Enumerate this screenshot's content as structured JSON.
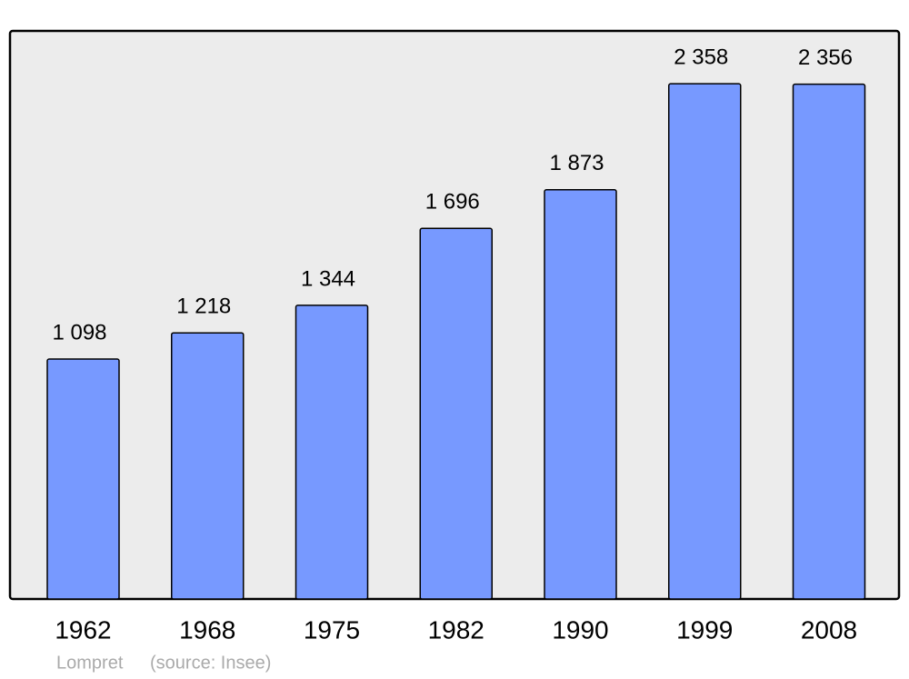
{
  "chart_data": {
    "type": "bar",
    "title": "Lompret",
    "source": "(source: Insee)",
    "categories": [
      "1962",
      "1968",
      "1975",
      "1982",
      "1990",
      "1999",
      "2008"
    ],
    "values": [
      1098,
      1218,
      1344,
      1696,
      1873,
      2358,
      2356
    ],
    "value_labels": [
      "1 098",
      "1 218",
      "1 344",
      "1 696",
      "1 873",
      "2 358",
      "2 356"
    ],
    "color": "#7799ff",
    "ylim": [
      0,
      2600
    ],
    "grid": false
  }
}
